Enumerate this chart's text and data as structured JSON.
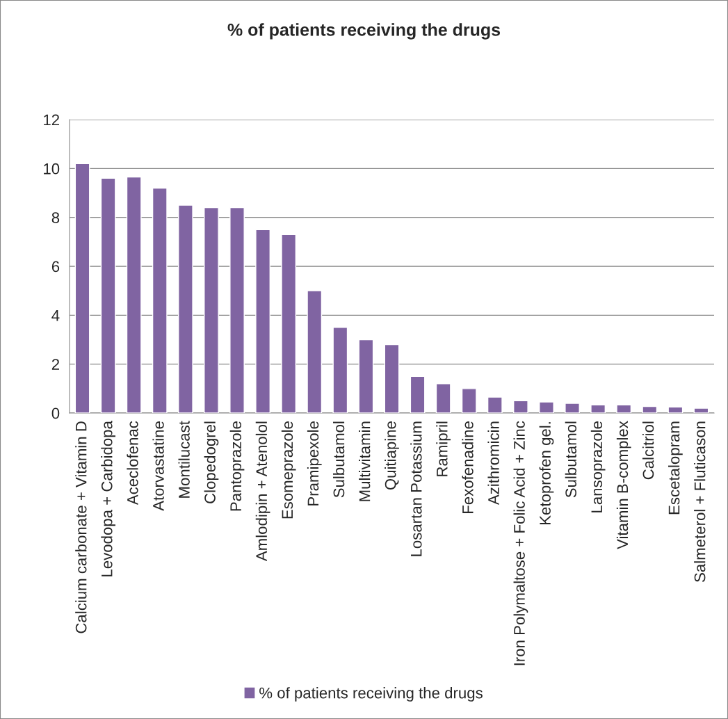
{
  "chart_data": {
    "type": "bar",
    "title": "% of patients receiving the drugs",
    "categories": [
      "Calcium carbonate + Vitamin D",
      "Levodopa + Carbidopa",
      "Aceclofenac",
      "Atorvastatine",
      "Montilucast",
      "Clopedogrel",
      "Pantoprazole",
      "Amlodipin + Atenolol",
      "Esomeprazole",
      "Pramipexole",
      "Sulbutamol",
      "Multivitamin",
      "Quitiapine",
      "Losartan Potassium",
      "Ramipril",
      "Fexofenadine",
      "Azithromicin",
      "Iron Polymaltose + Folic Acid + Zinc",
      "Ketoprofen gel.",
      "Sulbutamol",
      "Lansoprazole",
      "Vitamin B-complex",
      "Calcitriol",
      "Escetalopram",
      "Salmeterol + Fluticason"
    ],
    "series": [
      {
        "name": "% of patients receiving the drugs",
        "color": "#8064a2",
        "values": [
          10.2,
          9.6,
          9.65,
          9.2,
          8.5,
          8.4,
          8.4,
          7.5,
          7.3,
          5.0,
          3.5,
          3.0,
          2.8,
          1.5,
          1.2,
          1.0,
          0.65,
          0.5,
          0.45,
          0.4,
          0.33,
          0.33,
          0.27,
          0.25,
          0.2
        ]
      }
    ],
    "ylim": [
      0,
      12
    ],
    "yticks": [
      0,
      2,
      4,
      6,
      8,
      10,
      12
    ],
    "grid": "y",
    "legend": "bottom"
  }
}
